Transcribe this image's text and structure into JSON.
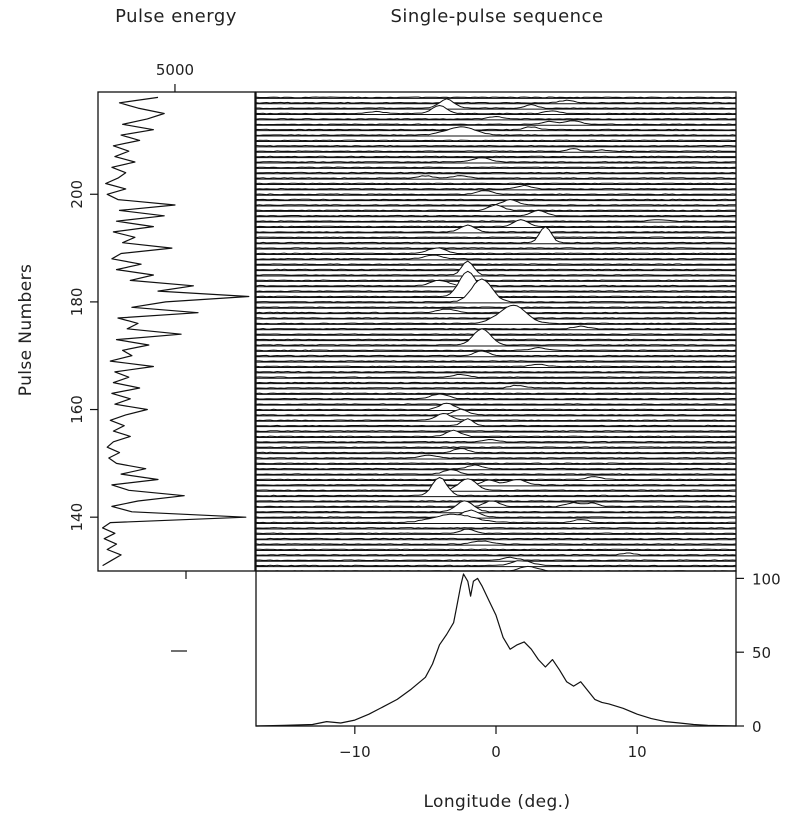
{
  "chart_data": [
    {
      "panel": "pulse-energy",
      "type": "line",
      "title": "Pulse energy",
      "xlabel": "",
      "ylabel": "Pulse Numbers",
      "x_ticks": [
        5000
      ],
      "x_tick_labels": [
        "5000"
      ],
      "ylim": [
        130,
        219
      ],
      "y_ticks": [
        140,
        160,
        180,
        200
      ],
      "y_tick_labels": [
        "140",
        "160",
        "180",
        "200"
      ],
      "energy_samples": [
        [
          131,
          300
        ],
        [
          132,
          900
        ],
        [
          133,
          1500
        ],
        [
          134,
          600
        ],
        [
          135,
          1200
        ],
        [
          136,
          400
        ],
        [
          137,
          1100
        ],
        [
          138,
          300
        ],
        [
          139,
          800
        ],
        [
          140,
          9600
        ],
        [
          141,
          2200
        ],
        [
          142,
          900
        ],
        [
          143,
          2600
        ],
        [
          144,
          5600
        ],
        [
          145,
          2000
        ],
        [
          146,
          900
        ],
        [
          147,
          3900
        ],
        [
          148,
          1500
        ],
        [
          149,
          3100
        ],
        [
          150,
          1200
        ],
        [
          151,
          700
        ],
        [
          152,
          1400
        ],
        [
          153,
          600
        ],
        [
          154,
          1000
        ],
        [
          155,
          2100
        ],
        [
          156,
          1000
        ],
        [
          157,
          1700
        ],
        [
          158,
          800
        ],
        [
          159,
          1800
        ],
        [
          160,
          3200
        ],
        [
          161,
          1100
        ],
        [
          162,
          2100
        ],
        [
          163,
          900
        ],
        [
          164,
          2700
        ],
        [
          165,
          1000
        ],
        [
          166,
          2000
        ],
        [
          167,
          1100
        ],
        [
          168,
          3600
        ],
        [
          169,
          800
        ],
        [
          170,
          2200
        ],
        [
          171,
          1600
        ],
        [
          172,
          3300
        ],
        [
          173,
          1200
        ],
        [
          174,
          5400
        ],
        [
          175,
          1900
        ],
        [
          176,
          2600
        ],
        [
          177,
          1300
        ],
        [
          178,
          6500
        ],
        [
          179,
          2200
        ],
        [
          180,
          4400
        ],
        [
          181,
          9800
        ],
        [
          182,
          3900
        ],
        [
          183,
          6200
        ],
        [
          184,
          2100
        ],
        [
          185,
          3600
        ],
        [
          186,
          1200
        ],
        [
          187,
          2800
        ],
        [
          188,
          900
        ],
        [
          189,
          1500
        ],
        [
          190,
          4800
        ],
        [
          191,
          1600
        ],
        [
          192,
          2400
        ],
        [
          193,
          1000
        ],
        [
          194,
          3600
        ],
        [
          195,
          1200
        ],
        [
          196,
          4300
        ],
        [
          197,
          1400
        ],
        [
          198,
          5000
        ],
        [
          199,
          1300
        ],
        [
          200,
          600
        ],
        [
          201,
          1800
        ],
        [
          202,
          500
        ],
        [
          203,
          1300
        ],
        [
          204,
          1800
        ],
        [
          205,
          900
        ],
        [
          206,
          2400
        ],
        [
          207,
          1100
        ],
        [
          208,
          2000
        ],
        [
          209,
          1000
        ],
        [
          210,
          2700
        ],
        [
          211,
          1500
        ],
        [
          212,
          3600
        ],
        [
          213,
          1600
        ],
        [
          214,
          3200
        ],
        [
          215,
          4300
        ],
        [
          216,
          2600
        ],
        [
          217,
          1400
        ],
        [
          218,
          3900
        ]
      ]
    },
    {
      "panel": "single-pulse-sequence",
      "type": "line",
      "title": "Single-pulse sequence",
      "xlim": [
        -17,
        17
      ],
      "ylim": [
        130,
        219
      ],
      "pulse_range": [
        130,
        218
      ],
      "noise_amplitude": 0.15,
      "components": [
        {
          "pulse": 130,
          "lon": 2.3,
          "amp": 1.0,
          "width": 0.6
        },
        {
          "pulse": 131,
          "lon": 1.8,
          "amp": 1.1,
          "width": 0.7
        },
        {
          "pulse": 132,
          "lon": 1.0,
          "amp": 0.6,
          "width": 0.5
        },
        {
          "pulse": 133,
          "lon": 9.3,
          "amp": 0.4,
          "width": 0.4
        },
        {
          "pulse": 135,
          "lon": -1.0,
          "amp": 0.7,
          "width": 0.6
        },
        {
          "pulse": 137,
          "lon": -2.0,
          "amp": 0.9,
          "width": 0.5
        },
        {
          "pulse": 139,
          "lon": 6.0,
          "amp": 0.7,
          "width": 0.5
        },
        {
          "pulse": 139,
          "lon": -3.0,
          "amp": 1.8,
          "width": 1.4
        },
        {
          "pulse": 140,
          "lon": -1.8,
          "amp": 1.5,
          "width": 0.6
        },
        {
          "pulse": 141,
          "lon": -2.2,
          "amp": 2.4,
          "width": 0.6
        },
        {
          "pulse": 142,
          "lon": 5.5,
          "amp": 0.8,
          "width": 0.5
        },
        {
          "pulse": 142,
          "lon": 6.8,
          "amp": 0.7,
          "width": 0.4
        },
        {
          "pulse": 142,
          "lon": -0.3,
          "amp": 1.2,
          "width": 0.5
        },
        {
          "pulse": 144,
          "lon": -4.0,
          "amp": 4.0,
          "width": 0.5
        },
        {
          "pulse": 145,
          "lon": -2.0,
          "amp": 2.5,
          "width": 0.6
        },
        {
          "pulse": 146,
          "lon": 1.5,
          "amp": 1.2,
          "width": 0.6
        },
        {
          "pulse": 146,
          "lon": -0.5,
          "amp": 1.0,
          "width": 0.5
        },
        {
          "pulse": 147,
          "lon": 7.0,
          "amp": 0.6,
          "width": 0.5
        },
        {
          "pulse": 148,
          "lon": -3.2,
          "amp": 1.0,
          "width": 0.5
        },
        {
          "pulse": 149,
          "lon": -1.5,
          "amp": 0.8,
          "width": 0.5
        },
        {
          "pulse": 151,
          "lon": -4.8,
          "amp": 0.6,
          "width": 0.6
        },
        {
          "pulse": 152,
          "lon": -2.5,
          "amp": 0.9,
          "width": 0.5
        },
        {
          "pulse": 154,
          "lon": -0.5,
          "amp": 0.5,
          "width": 0.5
        },
        {
          "pulse": 155,
          "lon": -3.0,
          "amp": 1.3,
          "width": 0.5
        },
        {
          "pulse": 157,
          "lon": -2.0,
          "amp": 1.5,
          "width": 0.4
        },
        {
          "pulse": 158,
          "lon": -3.7,
          "amp": 1.5,
          "width": 0.5
        },
        {
          "pulse": 159,
          "lon": -2.5,
          "amp": 1.2,
          "width": 0.5
        },
        {
          "pulse": 160,
          "lon": -3.5,
          "amp": 1.4,
          "width": 0.5
        },
        {
          "pulse": 162,
          "lon": -4.0,
          "amp": 1.0,
          "width": 0.6
        },
        {
          "pulse": 164,
          "lon": 1.5,
          "amp": 0.6,
          "width": 0.5
        },
        {
          "pulse": 166,
          "lon": -2.5,
          "amp": 0.6,
          "width": 0.5
        },
        {
          "pulse": 168,
          "lon": 3.0,
          "amp": 0.5,
          "width": 0.5
        },
        {
          "pulse": 170,
          "lon": -1.0,
          "amp": 1.0,
          "width": 0.5
        },
        {
          "pulse": 171,
          "lon": 3.0,
          "amp": 0.6,
          "width": 0.5
        },
        {
          "pulse": 172,
          "lon": -1.0,
          "amp": 3.5,
          "width": 0.6
        },
        {
          "pulse": 175,
          "lon": 6.0,
          "amp": 0.6,
          "width": 0.5
        },
        {
          "pulse": 176,
          "lon": 1.5,
          "amp": 3.0,
          "width": 0.8
        },
        {
          "pulse": 176,
          "lon": 0.5,
          "amp": 1.6,
          "width": 0.8
        },
        {
          "pulse": 178,
          "lon": -3.5,
          "amp": 0.8,
          "width": 0.6
        },
        {
          "pulse": 180,
          "lon": -1.0,
          "amp": 5.0,
          "width": 0.7
        },
        {
          "pulse": 181,
          "lon": -2.0,
          "amp": 5.5,
          "width": 0.6
        },
        {
          "pulse": 183,
          "lon": -4.0,
          "amp": 1.2,
          "width": 0.6
        },
        {
          "pulse": 185,
          "lon": -2.0,
          "amp": 3.0,
          "width": 0.4
        },
        {
          "pulse": 188,
          "lon": -4.5,
          "amp": 0.8,
          "width": 0.6
        },
        {
          "pulse": 189,
          "lon": -4.2,
          "amp": 1.2,
          "width": 0.6
        },
        {
          "pulse": 191,
          "lon": 3.5,
          "amp": 3.5,
          "width": 0.4
        },
        {
          "pulse": 193,
          "lon": -2.0,
          "amp": 1.5,
          "width": 0.5
        },
        {
          "pulse": 194,
          "lon": 1.8,
          "amp": 1.5,
          "width": 0.5
        },
        {
          "pulse": 195,
          "lon": 11.5,
          "amp": 0.3,
          "width": 0.5
        },
        {
          "pulse": 196,
          "lon": 3.0,
          "amp": 1.2,
          "width": 0.5
        },
        {
          "pulse": 197,
          "lon": 0.0,
          "amp": 1.2,
          "width": 0.5
        },
        {
          "pulse": 198,
          "lon": 1.0,
          "amp": 1.2,
          "width": 0.5
        },
        {
          "pulse": 200,
          "lon": -0.8,
          "amp": 0.8,
          "width": 0.5
        },
        {
          "pulse": 201,
          "lon": 2.0,
          "amp": 0.7,
          "width": 0.5
        },
        {
          "pulse": 203,
          "lon": -5.0,
          "amp": 0.5,
          "width": 0.5
        },
        {
          "pulse": 203,
          "lon": -2.5,
          "amp": 0.5,
          "width": 0.5
        },
        {
          "pulse": 206,
          "lon": -1.0,
          "amp": 0.9,
          "width": 0.6
        },
        {
          "pulse": 208,
          "lon": 5.5,
          "amp": 0.5,
          "width": 0.4
        },
        {
          "pulse": 208,
          "lon": 7.5,
          "amp": 0.3,
          "width": 0.4
        },
        {
          "pulse": 211,
          "lon": -2.5,
          "amp": 1.8,
          "width": 1.0
        },
        {
          "pulse": 212,
          "lon": 2.5,
          "amp": 0.6,
          "width": 0.5
        },
        {
          "pulse": 213,
          "lon": 5.5,
          "amp": 0.8,
          "width": 0.5
        },
        {
          "pulse": 213,
          "lon": 3.8,
          "amp": 0.6,
          "width": 0.5
        },
        {
          "pulse": 214,
          "lon": 0.0,
          "amp": 0.5,
          "width": 0.5
        },
        {
          "pulse": 215,
          "lon": 4.0,
          "amp": 0.6,
          "width": 0.5
        },
        {
          "pulse": 215,
          "lon": -4.0,
          "amp": 1.8,
          "width": 0.5
        },
        {
          "pulse": 215,
          "lon": -8.5,
          "amp": 0.4,
          "width": 0.6
        },
        {
          "pulse": 216,
          "lon": -3.5,
          "amp": 2.0,
          "width": 0.5
        },
        {
          "pulse": 216,
          "lon": 2.5,
          "amp": 0.8,
          "width": 0.4
        },
        {
          "pulse": 217,
          "lon": 5.0,
          "amp": 0.5,
          "width": 0.5
        }
      ]
    },
    {
      "panel": "integrated-profile",
      "type": "line",
      "xlabel": "Longitude (deg.)",
      "xlim": [
        -17,
        17
      ],
      "x_ticks": [
        -10,
        0,
        10
      ],
      "x_tick_labels": [
        "−10",
        "0",
        "10"
      ],
      "ylim": [
        0,
        105
      ],
      "y_ticks": [
        0,
        50,
        100
      ],
      "y_tick_labels": [
        "0",
        "50",
        "100"
      ],
      "profile": [
        [
          -17,
          0
        ],
        [
          -15,
          0.5
        ],
        [
          -13,
          1
        ],
        [
          -12,
          3
        ],
        [
          -11,
          2
        ],
        [
          -10,
          4
        ],
        [
          -9,
          8
        ],
        [
          -8,
          13
        ],
        [
          -7,
          18
        ],
        [
          -6,
          25
        ],
        [
          -5,
          33
        ],
        [
          -4.5,
          42
        ],
        [
          -4,
          55
        ],
        [
          -3.5,
          62
        ],
        [
          -3,
          70
        ],
        [
          -2.8,
          80
        ],
        [
          -2.5,
          95
        ],
        [
          -2.3,
          103
        ],
        [
          -2.0,
          98
        ],
        [
          -1.8,
          88
        ],
        [
          -1.6,
          98
        ],
        [
          -1.3,
          100
        ],
        [
          -1.0,
          95
        ],
        [
          -0.5,
          85
        ],
        [
          0,
          75
        ],
        [
          0.5,
          60
        ],
        [
          1.0,
          52
        ],
        [
          1.5,
          55
        ],
        [
          2.0,
          57
        ],
        [
          2.5,
          52
        ],
        [
          3.0,
          45
        ],
        [
          3.5,
          40
        ],
        [
          4.0,
          45
        ],
        [
          4.5,
          38
        ],
        [
          5.0,
          30
        ],
        [
          5.5,
          27
        ],
        [
          6.0,
          30
        ],
        [
          6.5,
          24
        ],
        [
          7.0,
          18
        ],
        [
          7.5,
          16
        ],
        [
          8.0,
          15
        ],
        [
          9.0,
          12
        ],
        [
          10.0,
          8
        ],
        [
          11.0,
          5
        ],
        [
          12.0,
          3
        ],
        [
          13.0,
          2
        ],
        [
          14.0,
          1
        ],
        [
          15.0,
          0.5
        ],
        [
          17.0,
          0
        ]
      ]
    }
  ]
}
